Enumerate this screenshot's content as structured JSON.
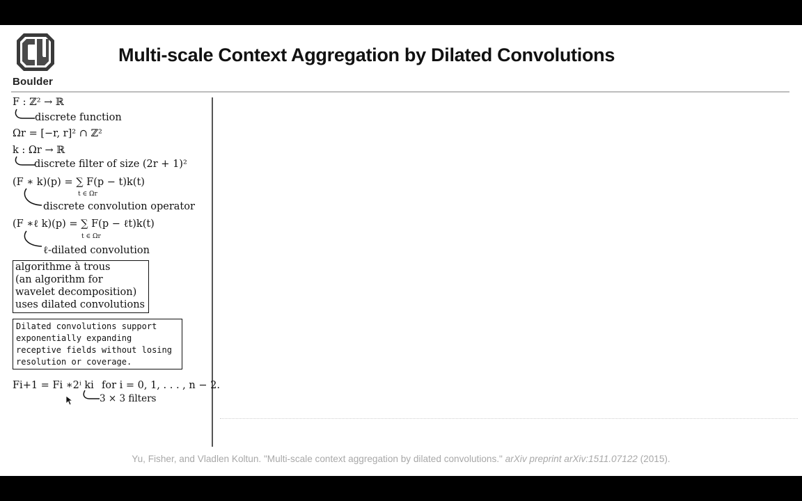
{
  "header": {
    "logo_text": "Boulder",
    "title": "Multi-scale Context Aggregation by Dilated Convolutions"
  },
  "notes": {
    "f_def": "F : ℤ² → ℝ",
    "f_note": "discrete function",
    "omega_def": "Ωr = [−r, r]² ∩ ℤ²",
    "k_def": "k : Ωr → ℝ",
    "k_note": "discrete filter of size (2r + 1)²",
    "conv_def": "(F ∗ k)(p) = ∑ F(p − t)k(t)",
    "conv_sub": "t ∈ Ωr",
    "conv_note": "discrete convolution operator",
    "dconv_def": "(F ∗ℓ k)(p) = ∑ F(p − ℓt)k(t)",
    "dconv_sub": "t ∈ Ωr",
    "dconv_note": "ℓ-dilated convolution",
    "box1_lines": [
      "algorithme à trous",
      "(an algorithm for",
      "wavelet decomposition)",
      "uses dilated convolutions"
    ],
    "box2_lines": [
      "Dilated convolutions support",
      "exponentially expanding",
      "receptive fields without losing",
      "resolution or coverage."
    ],
    "recur_def": "Fi+1 = Fi ∗2ⁱ ki",
    "recur_cond": "for i = 0, 1, . . . , n − 2.",
    "recur_note": "3 × 3 filters"
  },
  "citation": {
    "plain": "Yu, Fisher, and Vladlen Koltun. \"Multi-scale context aggregation by dilated convolutions.\" ",
    "italic": "arXiv preprint arXiv:1511.07122",
    "year": " (2015)."
  }
}
